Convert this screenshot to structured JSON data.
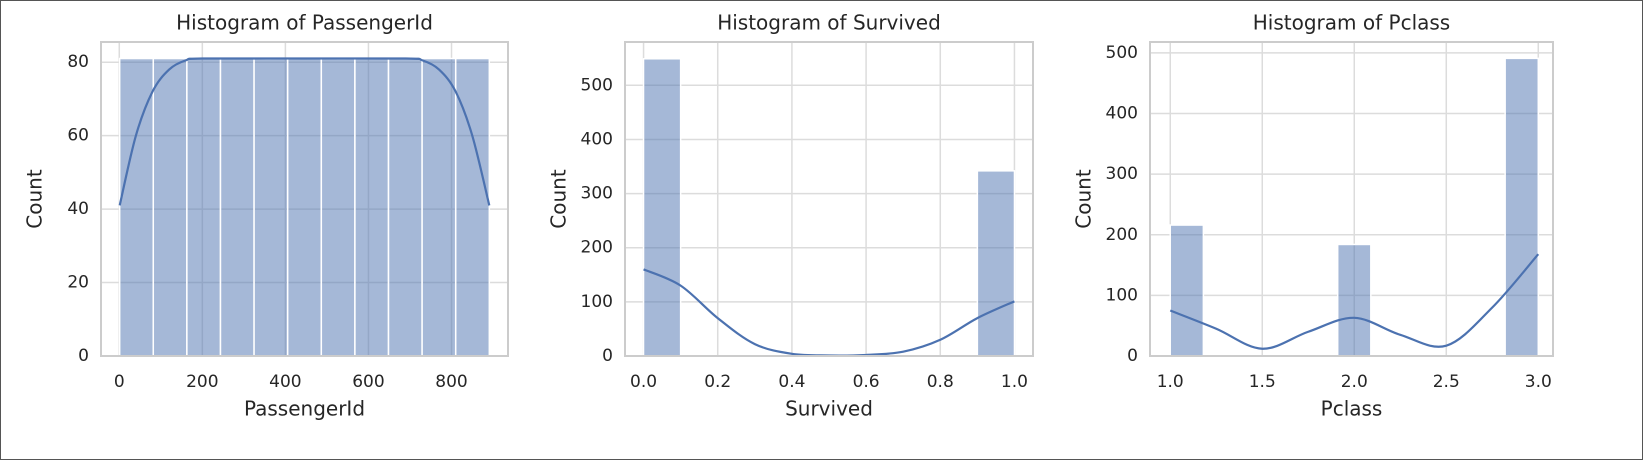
{
  "chart_data": [
    {
      "type": "histogram",
      "title": "Histogram of PassengerId",
      "xlabel": "PassengerId",
      "ylabel": "Count",
      "bins": [
        1,
        81.9,
        162.8,
        243.7,
        324.6,
        405.5,
        486.5,
        567.4,
        648.3,
        729.2,
        810.1,
        891
      ],
      "values": [
        81,
        81,
        81,
        81,
        81,
        81,
        81,
        81,
        81,
        81,
        81
      ],
      "color": "#4c72b0",
      "kde": {
        "x": [
          1,
          40,
          80,
          120,
          160,
          200,
          445,
          690,
          730,
          770,
          810,
          850,
          891
        ],
        "values": [
          41,
          60,
          72,
          78,
          80.5,
          81,
          81,
          81,
          80.5,
          78,
          72,
          60,
          41
        ],
        "color": "#4c72b0"
      },
      "xlim": [
        -44,
        936
      ],
      "ylim": [
        0,
        85.5
      ],
      "xticks": [
        0,
        200,
        400,
        600,
        800
      ],
      "yticks": [
        0,
        20,
        40,
        60,
        80
      ],
      "grid": true
    },
    {
      "type": "histogram",
      "title": "Histogram of Survived",
      "xlabel": "Survived",
      "ylabel": "Count",
      "bins": [
        0,
        0.1,
        0.2,
        0.3,
        0.4,
        0.5,
        0.6,
        0.7,
        0.8,
        0.9,
        1.0
      ],
      "values": [
        549,
        0,
        0,
        0,
        0,
        0,
        0,
        0,
        0,
        342
      ],
      "color": "#4c72b0",
      "kde": {
        "x": [
          0,
          0.1,
          0.2,
          0.3,
          0.4,
          0.5,
          0.6,
          0.7,
          0.8,
          0.9,
          1.0
        ],
        "values": [
          160,
          130,
          70,
          22,
          4,
          1,
          2,
          8,
          30,
          70,
          101
        ],
        "color": "#4c72b0"
      },
      "xlim": [
        -0.05,
        1.05
      ],
      "ylim": [
        0,
        580
      ],
      "xticks": [
        {
          "value": 0,
          "label": "0.0"
        },
        0.2,
        0.4,
        0.6,
        0.8,
        {
          "value": 1,
          "label": "1.0"
        }
      ],
      "yticks": [
        0,
        100,
        200,
        300,
        400,
        500
      ],
      "grid": true
    },
    {
      "type": "histogram",
      "title": "Histogram of Pclass",
      "xlabel": "Pclass",
      "ylabel": "Count",
      "bins": [
        1,
        1.18,
        1.36,
        1.55,
        1.73,
        1.91,
        2.09,
        2.27,
        2.45,
        2.64,
        2.82,
        3
      ],
      "values": [
        216,
        0,
        0,
        0,
        0,
        184,
        0,
        0,
        0,
        0,
        491
      ],
      "color": "#4c72b0",
      "kde": {
        "x": [
          1,
          1.25,
          1.5,
          1.75,
          2,
          2.25,
          2.5,
          2.75,
          3
        ],
        "values": [
          75,
          45,
          12,
          40,
          63,
          35,
          17,
          80,
          168
        ],
        "color": "#4c72b0"
      },
      "xlim": [
        0.89,
        3.08
      ],
      "ylim": [
        0,
        518
      ],
      "xticks": [
        {
          "value": 1,
          "label": "1.0"
        },
        1.5,
        {
          "value": 2,
          "label": "2.0"
        },
        2.5,
        {
          "value": 3,
          "label": "3.0"
        }
      ],
      "yticks": [
        0,
        100,
        200,
        300,
        400,
        500
      ],
      "grid": true
    }
  ]
}
